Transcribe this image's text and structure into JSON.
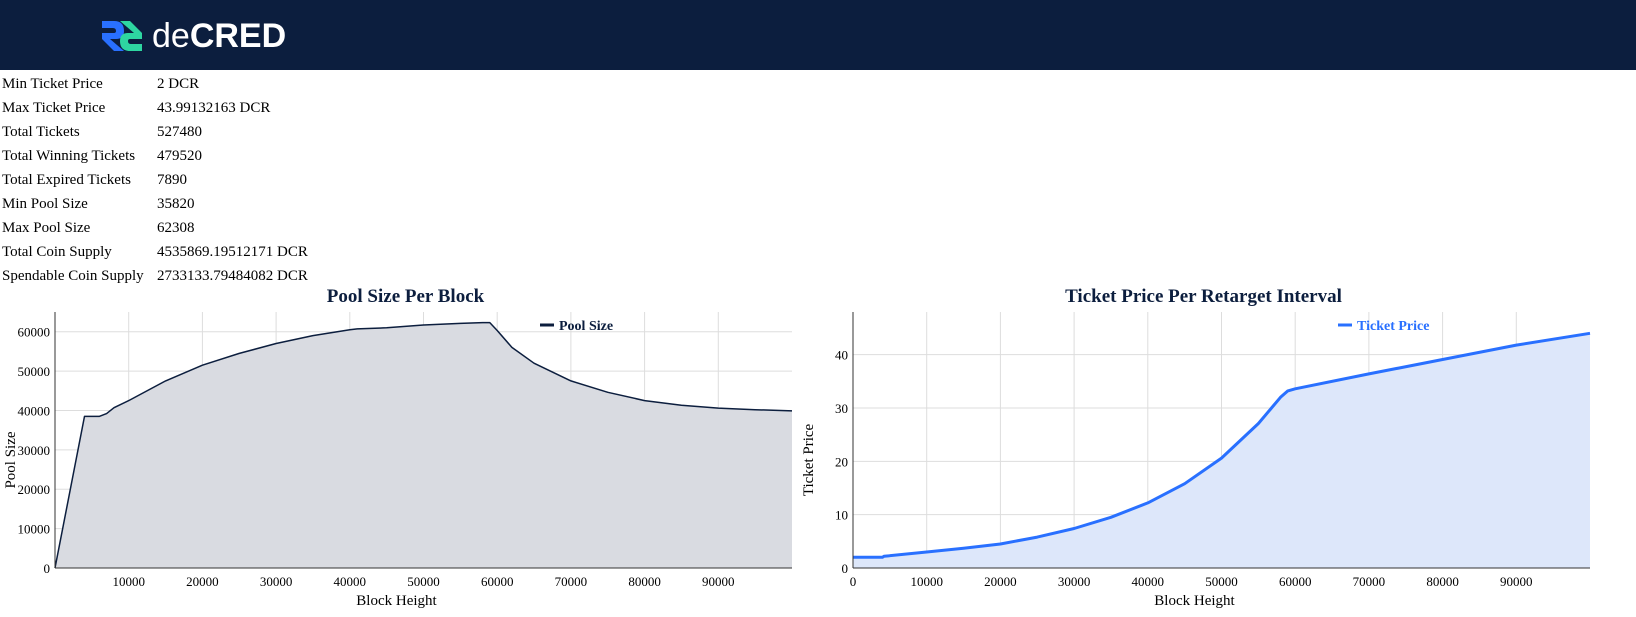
{
  "header": {
    "logo_text_lower": "de",
    "logo_text_upper": "CRED",
    "colors": {
      "background": "#0c1e3e",
      "logo_blue": "#2970ff",
      "logo_green": "#2ed6a1"
    }
  },
  "stats": [
    {
      "label": "Min Ticket Price",
      "value": "2 DCR"
    },
    {
      "label": "Max Ticket Price",
      "value": "43.99132163 DCR"
    },
    {
      "label": "Total Tickets",
      "value": "527480"
    },
    {
      "label": "Total Winning Tickets",
      "value": "479520"
    },
    {
      "label": "Total Expired Tickets",
      "value": "7890"
    },
    {
      "label": "Min Pool Size",
      "value": "35820"
    },
    {
      "label": "Max Pool Size",
      "value": "62308"
    },
    {
      "label": "Total Coin Supply",
      "value": "4535869.19512171 DCR"
    },
    {
      "label": "Spendable Coin Supply",
      "value": "2733133.79484082 DCR"
    }
  ],
  "chart_data": [
    {
      "type": "area",
      "title": "Pool Size Per Block",
      "xlabel": "Block Height",
      "ylabel": "Pool Size",
      "xlim": [
        0,
        100000
      ],
      "ylim": [
        0,
        65000
      ],
      "xticks": [
        10000,
        20000,
        30000,
        40000,
        50000,
        60000,
        70000,
        80000,
        90000
      ],
      "yticks": [
        0,
        10000,
        20000,
        30000,
        40000,
        50000,
        60000
      ],
      "grid": true,
      "legend_position": "top-right",
      "series": [
        {
          "name": "Pool Size",
          "color": "#0c1e3e",
          "fill": "#d9dbe1",
          "x": [
            0,
            4000,
            5000,
            6000,
            7000,
            8000,
            10000,
            15000,
            20000,
            25000,
            30000,
            35000,
            40000,
            41000,
            45000,
            50000,
            55000,
            58000,
            59000,
            60000,
            62000,
            65000,
            70000,
            75000,
            80000,
            85000,
            90000,
            95000,
            100000
          ],
          "y": [
            0,
            38500,
            38500,
            38500,
            39200,
            40700,
            42500,
            47500,
            51500,
            54500,
            57000,
            59000,
            60500,
            60700,
            61000,
            61700,
            62100,
            62300,
            62300,
            60300,
            56000,
            52000,
            47500,
            44600,
            42500,
            41300,
            40600,
            40200,
            39900
          ]
        }
      ]
    },
    {
      "type": "area",
      "title": "Ticket Price Per Retarget Interval",
      "xlabel": "Block Height",
      "ylabel": "Ticket Price",
      "xlim": [
        0,
        100000
      ],
      "ylim": [
        0,
        48
      ],
      "xticks": [
        0,
        10000,
        20000,
        30000,
        40000,
        50000,
        60000,
        70000,
        80000,
        90000
      ],
      "yticks": [
        0,
        10,
        20,
        30,
        40
      ],
      "grid": true,
      "legend_position": "top-right",
      "series": [
        {
          "name": "Ticket Price",
          "color": "#2970ff",
          "fill": "#dde7fa",
          "x": [
            0,
            4000,
            4200,
            10000,
            15000,
            20000,
            25000,
            30000,
            35000,
            40000,
            45000,
            50000,
            55000,
            58000,
            59000,
            60000,
            70000,
            80000,
            90000,
            100000
          ],
          "y": [
            2,
            2,
            2.2,
            3,
            3.7,
            4.5,
            5.8,
            7.4,
            9.5,
            12.2,
            15.8,
            20.6,
            27.1,
            32.0,
            33.2,
            33.6,
            36.4,
            39.1,
            41.8,
            44.0
          ]
        }
      ]
    }
  ]
}
